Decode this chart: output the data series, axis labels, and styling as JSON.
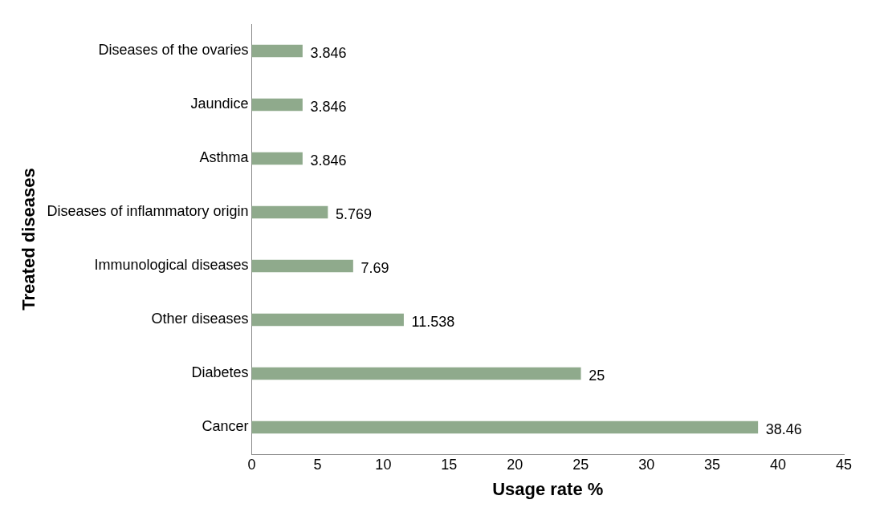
{
  "chart_data": {
    "type": "bar",
    "orientation": "horizontal",
    "xlabel": "Usage rate %",
    "ylabel": "Treated diseases",
    "categories": [
      "Diseases of the ovaries",
      "Jaundice",
      "Asthma",
      "Diseases of inflammatory origin",
      "Immunological diseases",
      "Other diseases",
      "Diabetes",
      "Cancer"
    ],
    "values": [
      3.846,
      3.846,
      3.846,
      5.769,
      7.69,
      11.538,
      25,
      38.46
    ],
    "color": "#8faa8c",
    "xlim": [
      0,
      45
    ],
    "xticks": [
      0,
      5,
      10,
      15,
      20,
      25,
      30,
      35,
      40,
      45
    ],
    "data_labels": true
  }
}
